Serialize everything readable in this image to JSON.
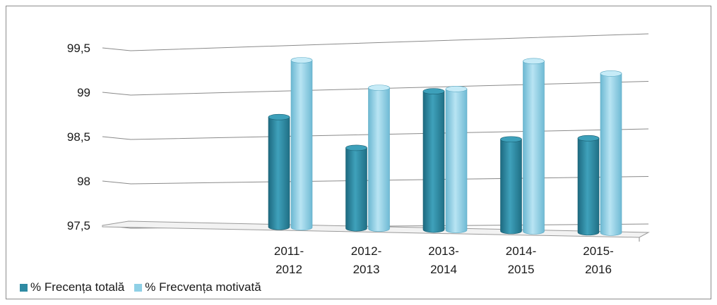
{
  "chart_data": {
    "type": "bar",
    "categories": [
      "2011-\n2012",
      "2012-\n2013",
      "2013-\n2014",
      "2014-\n2015",
      "2015-\n2016"
    ],
    "series": [
      {
        "name": "% Frecența totală",
        "values": [
          98.75,
          98.4,
          99.0,
          98.47,
          98.47
        ],
        "color": "#2e8aa3"
      },
      {
        "name": "% Frecvența motivată",
        "values": [
          99.37,
          99.05,
          99.02,
          99.3,
          99.15
        ],
        "color": "#8fd0e6"
      }
    ],
    "yticks": [
      "97,5",
      "98",
      "98,5",
      "99",
      "99,5"
    ],
    "ylim": [
      97.5,
      99.5
    ],
    "grid": true,
    "legend_position": "bottom-left",
    "title": "",
    "xlabel": "",
    "ylabel": ""
  }
}
